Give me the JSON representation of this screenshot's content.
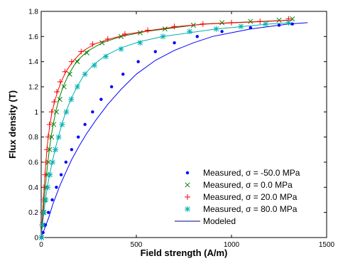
{
  "chart_data": {
    "type": "scatter",
    "title": "",
    "xlabel": "Field strength (A/m)",
    "ylabel": "Flux density (T)",
    "xlim": [
      0,
      1500
    ],
    "ylim": [
      0,
      1.8
    ],
    "xticks": [
      0,
      500,
      1000,
      1500
    ],
    "yticks": [
      0,
      0.2,
      0.4,
      0.6,
      0.8,
      1.0,
      1.2,
      1.4,
      1.6,
      1.8
    ],
    "xtick_labels": [
      "0",
      "500",
      "1000",
      "1500"
    ],
    "ytick_labels": [
      "0",
      "0.2",
      "0.4",
      "0.6",
      "0.8",
      "1",
      "1.2",
      "1.4",
      "1.6",
      "1.8"
    ],
    "grid": false,
    "legend_position": "bottom-right",
    "series": [
      {
        "name": "Measured, σ = -50.0 MPa",
        "marker": "dot",
        "color": "#0000ff",
        "points": [
          [
            2,
            0.0
          ],
          [
            10,
            0.04
          ],
          [
            22,
            0.1
          ],
          [
            38,
            0.2
          ],
          [
            58,
            0.3
          ],
          [
            80,
            0.4
          ],
          [
            105,
            0.5
          ],
          [
            130,
            0.6
          ],
          [
            160,
            0.7
          ],
          [
            195,
            0.8
          ],
          [
            230,
            0.9
          ],
          [
            270,
            1.0
          ],
          [
            315,
            1.1
          ],
          [
            370,
            1.2
          ],
          [
            430,
            1.3
          ],
          [
            510,
            1.4
          ],
          [
            600,
            1.48
          ],
          [
            700,
            1.55
          ],
          [
            820,
            1.6
          ],
          [
            950,
            1.64
          ],
          [
            1100,
            1.67
          ],
          [
            1250,
            1.69
          ],
          [
            1320,
            1.7
          ]
        ],
        "model": [
          [
            0,
            0.0
          ],
          [
            20,
            0.08
          ],
          [
            40,
            0.16
          ],
          [
            60,
            0.26
          ],
          [
            80,
            0.34
          ],
          [
            100,
            0.42
          ],
          [
            130,
            0.52
          ],
          [
            160,
            0.62
          ],
          [
            200,
            0.73
          ],
          [
            240,
            0.83
          ],
          [
            290,
            0.94
          ],
          [
            350,
            1.06
          ],
          [
            420,
            1.18
          ],
          [
            500,
            1.3
          ],
          [
            600,
            1.41
          ],
          [
            700,
            1.49
          ],
          [
            800,
            1.55
          ],
          [
            900,
            1.6
          ],
          [
            1000,
            1.63
          ],
          [
            1100,
            1.66
          ],
          [
            1200,
            1.68
          ],
          [
            1300,
            1.7
          ],
          [
            1400,
            1.71
          ]
        ]
      },
      {
        "name": "Measured, σ = 0.0 MPa",
        "marker": "x",
        "color": "#008000",
        "points": [
          [
            2,
            0.0
          ],
          [
            6,
            0.1
          ],
          [
            12,
            0.2
          ],
          [
            18,
            0.3
          ],
          [
            24,
            0.4
          ],
          [
            30,
            0.5
          ],
          [
            38,
            0.6
          ],
          [
            45,
            0.7
          ],
          [
            55,
            0.8
          ],
          [
            66,
            0.9
          ],
          [
            80,
            1.0
          ],
          [
            98,
            1.1
          ],
          [
            120,
            1.2
          ],
          [
            150,
            1.3
          ],
          [
            190,
            1.4
          ],
          [
            240,
            1.47
          ],
          [
            320,
            1.55
          ],
          [
            420,
            1.6
          ],
          [
            520,
            1.63
          ],
          [
            650,
            1.66
          ],
          [
            800,
            1.69
          ],
          [
            950,
            1.71
          ],
          [
            1100,
            1.72
          ],
          [
            1250,
            1.73
          ],
          [
            1320,
            1.74
          ]
        ],
        "model": [
          [
            0,
            0.0
          ],
          [
            5,
            0.1
          ],
          [
            10,
            0.2
          ],
          [
            16,
            0.3
          ],
          [
            22,
            0.4
          ],
          [
            28,
            0.5
          ],
          [
            35,
            0.6
          ],
          [
            43,
            0.7
          ],
          [
            52,
            0.8
          ],
          [
            63,
            0.9
          ],
          [
            76,
            1.0
          ],
          [
            93,
            1.1
          ],
          [
            115,
            1.2
          ],
          [
            145,
            1.3
          ],
          [
            185,
            1.4
          ],
          [
            240,
            1.48
          ],
          [
            320,
            1.55
          ],
          [
            420,
            1.6
          ],
          [
            550,
            1.64
          ],
          [
            700,
            1.67
          ],
          [
            850,
            1.7
          ],
          [
            1000,
            1.71
          ],
          [
            1150,
            1.72
          ],
          [
            1300,
            1.73
          ]
        ]
      },
      {
        "name": "Measured, σ = 20.0 MPa",
        "marker": "plus",
        "color": "#ff0000",
        "points": [
          [
            2,
            0.0
          ],
          [
            5,
            0.1
          ],
          [
            8,
            0.2
          ],
          [
            12,
            0.3
          ],
          [
            16,
            0.4
          ],
          [
            20,
            0.5
          ],
          [
            25,
            0.6
          ],
          [
            30,
            0.7
          ],
          [
            36,
            0.8
          ],
          [
            44,
            0.9
          ],
          [
            55,
            1.0
          ],
          [
            68,
            1.08
          ],
          [
            82,
            1.16
          ],
          [
            100,
            1.24
          ],
          [
            125,
            1.32
          ],
          [
            160,
            1.4
          ],
          [
            210,
            1.48
          ],
          [
            270,
            1.54
          ],
          [
            350,
            1.58
          ],
          [
            440,
            1.62
          ],
          [
            560,
            1.65
          ],
          [
            700,
            1.68
          ],
          [
            850,
            1.7
          ],
          [
            1000,
            1.71
          ],
          [
            1150,
            1.72
          ],
          [
            1300,
            1.74
          ]
        ],
        "model": [
          [
            0,
            0.0
          ],
          [
            4,
            0.1
          ],
          [
            8,
            0.2
          ],
          [
            12,
            0.3
          ],
          [
            16,
            0.4
          ],
          [
            20,
            0.5
          ],
          [
            25,
            0.6
          ],
          [
            30,
            0.7
          ],
          [
            37,
            0.8
          ],
          [
            46,
            0.9
          ],
          [
            57,
            1.0
          ],
          [
            70,
            1.08
          ],
          [
            86,
            1.16
          ],
          [
            105,
            1.24
          ],
          [
            130,
            1.32
          ],
          [
            165,
            1.4
          ],
          [
            215,
            1.48
          ],
          [
            280,
            1.54
          ],
          [
            360,
            1.58
          ],
          [
            460,
            1.62
          ],
          [
            580,
            1.65
          ],
          [
            720,
            1.68
          ],
          [
            870,
            1.7
          ],
          [
            1030,
            1.71
          ],
          [
            1180,
            1.72
          ],
          [
            1320,
            1.73
          ]
        ]
      },
      {
        "name": "Measured, σ = 80.0 MPa",
        "marker": "star",
        "color": "#00b0b0",
        "points": [
          [
            2,
            0.0
          ],
          [
            8,
            0.1
          ],
          [
            15,
            0.2
          ],
          [
            24,
            0.3
          ],
          [
            34,
            0.4
          ],
          [
            46,
            0.5
          ],
          [
            60,
            0.6
          ],
          [
            75,
            0.7
          ],
          [
            92,
            0.8
          ],
          [
            110,
            0.9
          ],
          [
            132,
            1.0
          ],
          [
            158,
            1.1
          ],
          [
            190,
            1.2
          ],
          [
            230,
            1.3
          ],
          [
            280,
            1.37
          ],
          [
            340,
            1.44
          ],
          [
            420,
            1.5
          ],
          [
            520,
            1.55
          ],
          [
            640,
            1.6
          ],
          [
            780,
            1.64
          ],
          [
            920,
            1.66
          ],
          [
            1050,
            1.68
          ],
          [
            1180,
            1.7
          ],
          [
            1300,
            1.71
          ]
        ],
        "model": [
          [
            0,
            0.0
          ],
          [
            7,
            0.1
          ],
          [
            14,
            0.2
          ],
          [
            22,
            0.3
          ],
          [
            32,
            0.4
          ],
          [
            44,
            0.5
          ],
          [
            58,
            0.6
          ],
          [
            73,
            0.7
          ],
          [
            90,
            0.8
          ],
          [
            108,
            0.9
          ],
          [
            130,
            1.0
          ],
          [
            156,
            1.1
          ],
          [
            188,
            1.2
          ],
          [
            228,
            1.3
          ],
          [
            278,
            1.38
          ],
          [
            340,
            1.45
          ],
          [
            420,
            1.51
          ],
          [
            520,
            1.56
          ],
          [
            640,
            1.6
          ],
          [
            780,
            1.63
          ],
          [
            920,
            1.66
          ],
          [
            1060,
            1.68
          ],
          [
            1200,
            1.7
          ],
          [
            1320,
            1.71
          ]
        ]
      }
    ],
    "model_legend": {
      "name": "Modeled",
      "color": "#000080"
    }
  }
}
